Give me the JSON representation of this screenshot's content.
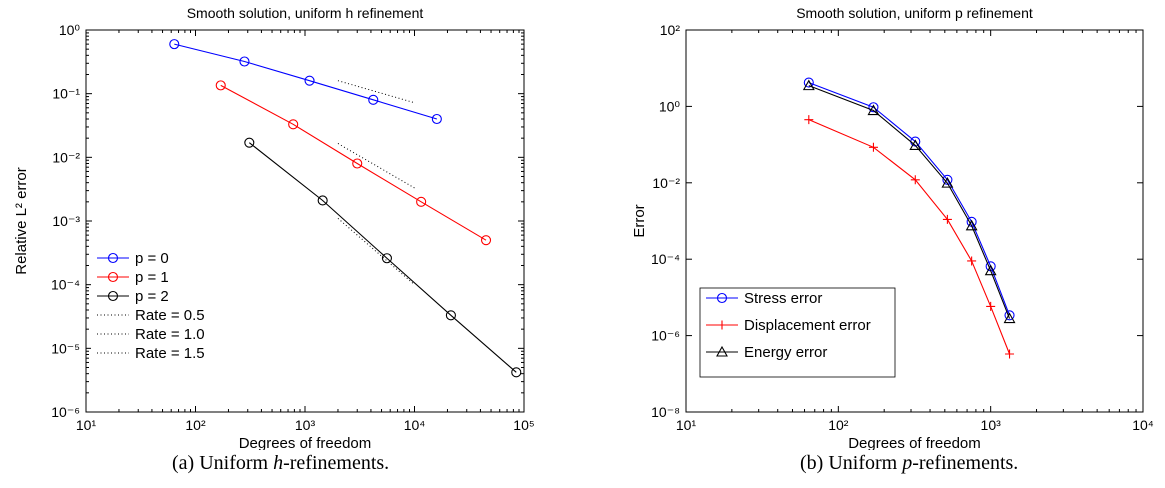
{
  "chart_data": [
    {
      "type": "line",
      "title": "Smooth solution, uniform h refinement",
      "xlabel": "Degrees of freedom",
      "ylabel": "Relative L² error",
      "xscale": "log",
      "yscale": "log",
      "xlim": [
        10,
        100000
      ],
      "ylim": [
        1e-06,
        1
      ],
      "x_ticks": [
        "10¹",
        "10²",
        "10³",
        "10⁴",
        "10⁵"
      ],
      "y_ticks": [
        "10⁰",
        "10⁻¹",
        "10⁻²",
        "10⁻³",
        "10⁻⁴",
        "10⁻⁵",
        "10⁻⁶"
      ],
      "legend_position": "bottom-left",
      "series": [
        {
          "name": "p = 0",
          "color": "#0000ff",
          "marker": "circle",
          "line": "solid",
          "x": [
            64,
            280,
            1100,
            4200,
            16000
          ],
          "y": [
            0.6,
            0.32,
            0.16,
            0.08,
            0.04
          ]
        },
        {
          "name": "p = 1",
          "color": "#ff0000",
          "marker": "circle",
          "line": "solid",
          "x": [
            170,
            780,
            3000,
            11500,
            45000
          ],
          "y": [
            0.135,
            0.033,
            0.008,
            0.002,
            0.0005
          ]
        },
        {
          "name": "p = 2",
          "color": "#000000",
          "marker": "circle",
          "line": "solid",
          "x": [
            310,
            1450,
            5600,
            21500,
            85000
          ],
          "y": [
            0.017,
            0.0021,
            0.00026,
            3.3e-05,
            4.2e-06
          ]
        },
        {
          "name": "Rate = 0.5",
          "color": "#000000",
          "marker": "none",
          "line": "dotted",
          "x": [
            2000,
            10000
          ],
          "y": [
            0.16,
            0.072
          ]
        },
        {
          "name": "Rate = 1.0",
          "color": "#000000",
          "marker": "none",
          "line": "dotted",
          "x": [
            2000,
            10000
          ],
          "y": [
            0.0165,
            0.0033
          ]
        },
        {
          "name": "Rate = 1.5",
          "color": "#000000",
          "marker": "none",
          "line": "dotted",
          "x": [
            2000,
            10000
          ],
          "y": [
            0.0011,
            0.0001
          ]
        }
      ]
    },
    {
      "type": "line",
      "title": "Smooth solution, uniform p refinement",
      "xlabel": "Degrees of freedom",
      "ylabel": "Error",
      "xscale": "log",
      "yscale": "log",
      "xlim": [
        10,
        10000
      ],
      "ylim": [
        1e-08,
        100
      ],
      "x_ticks": [
        "10¹",
        "10²",
        "10³",
        "10⁴"
      ],
      "y_ticks": [
        "10²",
        "10⁰",
        "10⁻²",
        "10⁻⁴",
        "10⁻⁶",
        "10⁻⁸"
      ],
      "legend_position": "bottom-left",
      "series": [
        {
          "name": "Stress error",
          "color": "#0000ff",
          "marker": "circle",
          "line": "solid",
          "x": [
            64,
            170,
            320,
            520,
            750,
            1000,
            1330
          ],
          "y": [
            4.2,
            0.95,
            0.12,
            0.012,
            0.00095,
            6.5e-05,
            3.4e-06
          ]
        },
        {
          "name": "Displacement error",
          "color": "#ff0000",
          "marker": "plus",
          "line": "solid",
          "x": [
            64,
            170,
            320,
            520,
            750,
            1000,
            1330
          ],
          "y": [
            0.45,
            0.085,
            0.012,
            0.0011,
            9e-05,
            5.8e-06,
            3.3e-07
          ]
        },
        {
          "name": "Energy error",
          "color": "#000000",
          "marker": "triangle",
          "line": "solid",
          "x": [
            64,
            170,
            320,
            520,
            750,
            1000,
            1330
          ],
          "y": [
            3.5,
            0.78,
            0.095,
            0.0098,
            0.00075,
            5e-05,
            2.8e-06
          ]
        }
      ]
    }
  ],
  "captions": [
    {
      "label": "(a)",
      "text": "Uniform",
      "italic": "h",
      "suffix": "-refinements."
    },
    {
      "label": "(b)",
      "text": "Uniform",
      "italic": "p",
      "suffix": "-refinements."
    }
  ]
}
